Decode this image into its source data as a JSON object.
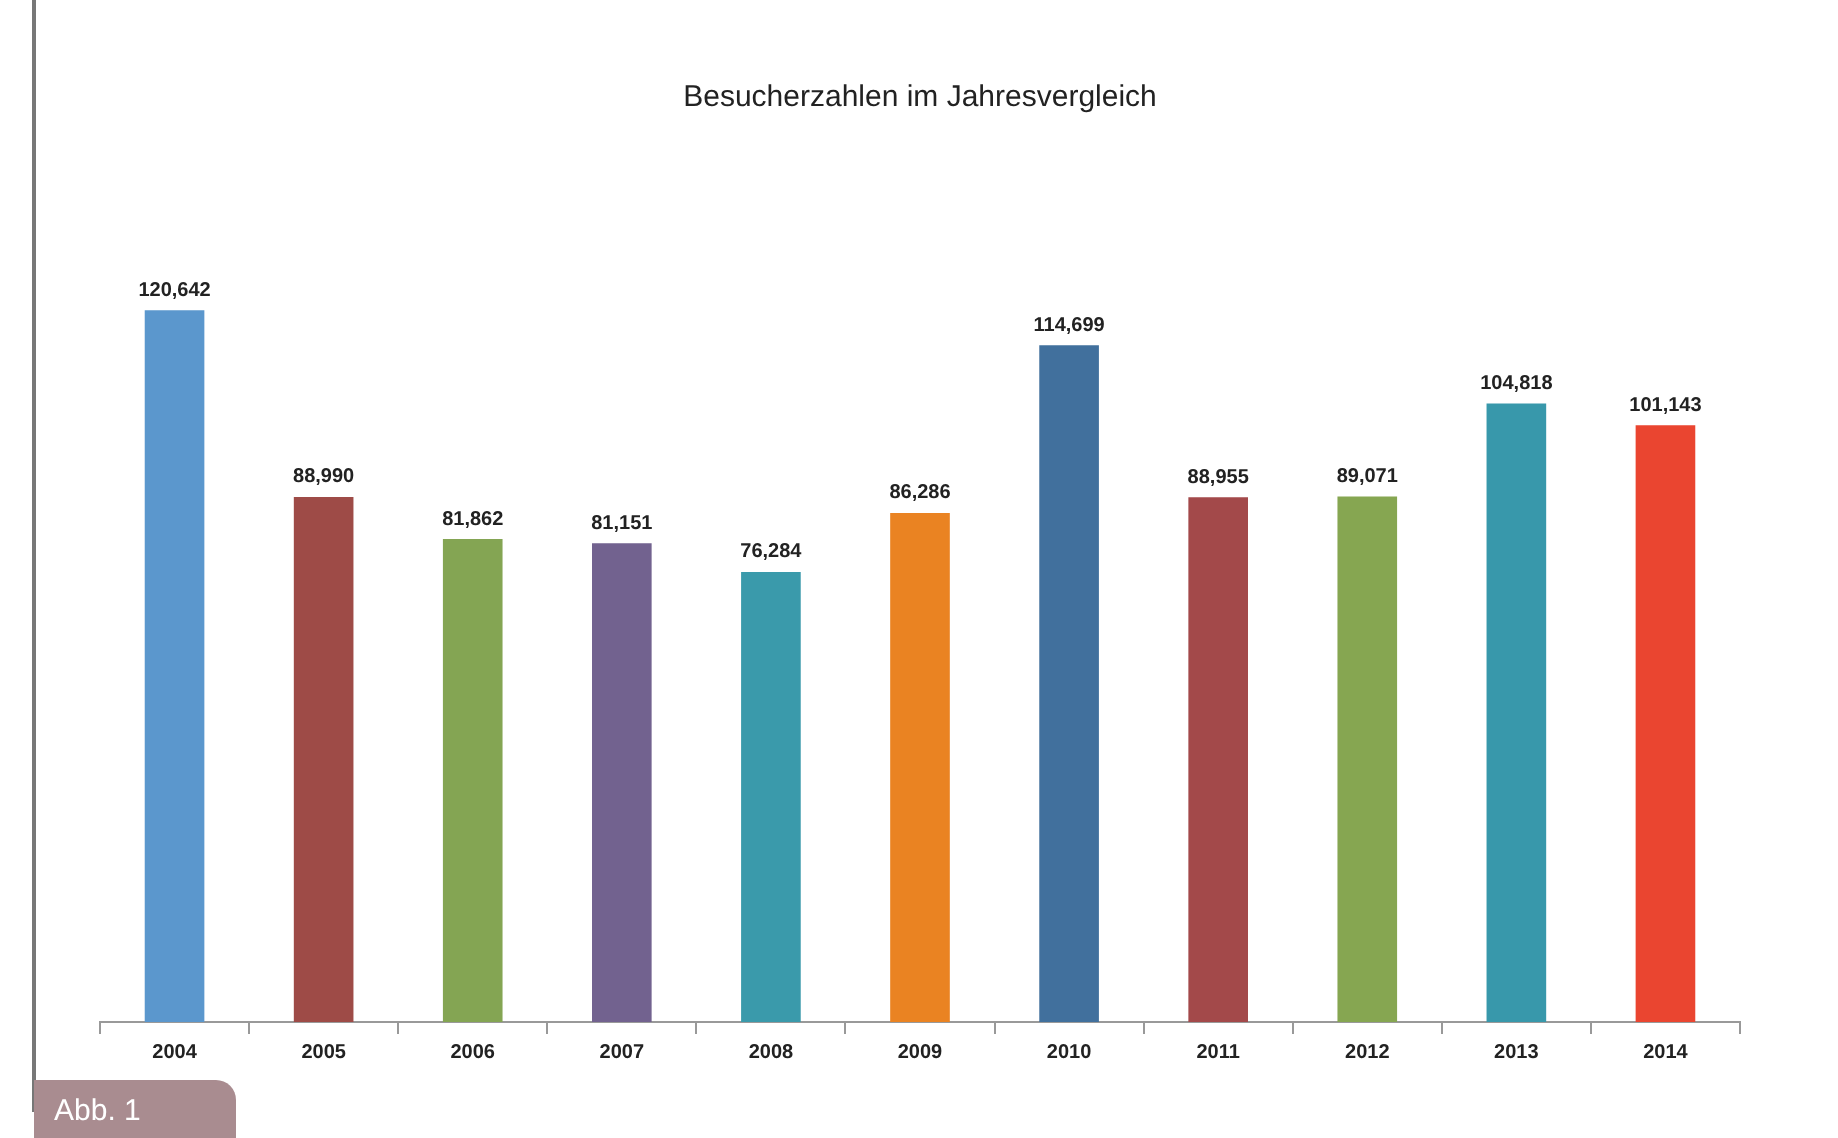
{
  "chart_data": {
    "type": "bar",
    "title": "Besucherzahlen im Jahresvergleich",
    "categories": [
      "2004",
      "2005",
      "2006",
      "2007",
      "2008",
      "2009",
      "2010",
      "2011",
      "2012",
      "2013",
      "2014"
    ],
    "values": [
      120642,
      88990,
      81862,
      81151,
      76284,
      86286,
      114699,
      88955,
      89071,
      104818,
      101143
    ],
    "colors": [
      "#5b97cd",
      "#9e4b47",
      "#84a553",
      "#72628f",
      "#3a9aab",
      "#ea8322",
      "#41709d",
      "#a3494a",
      "#86a651",
      "#3898ab",
      "#ea4530"
    ],
    "value_labels": [
      "120,642",
      "88,990",
      "81,862",
      "81,151",
      "76,284",
      "86,286",
      "114,699",
      "88,955",
      "89,071",
      "104,818",
      "101,143"
    ],
    "tick_labels": "x",
    "grid": false,
    "legend": false,
    "annotations": [
      "Abb. 1"
    ]
  }
}
